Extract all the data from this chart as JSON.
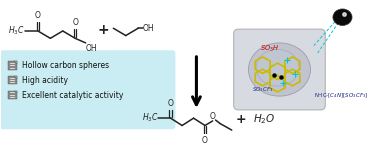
{
  "bg_color": "#ffffff",
  "bullet_items": [
    "Hollow carbon spheres",
    "High acidity",
    "Excellent catalytic activity"
  ],
  "so3h_label": "SO₃H",
  "so3cf3_label": "SO₃CF₃",
  "nhc_label": "NHC-[C₄N][SO₃CF₃]",
  "water": "H₂O",
  "bond_color": "#222222",
  "box_color": "#b8e8f0",
  "sphere_color": "#c8c8cc",
  "hex_color": "#ddcc00",
  "cyan_color": "#00c8d8",
  "red_label_color": "#cc0000",
  "blue_label_color": "#1a237e",
  "drop_color": "#111111"
}
